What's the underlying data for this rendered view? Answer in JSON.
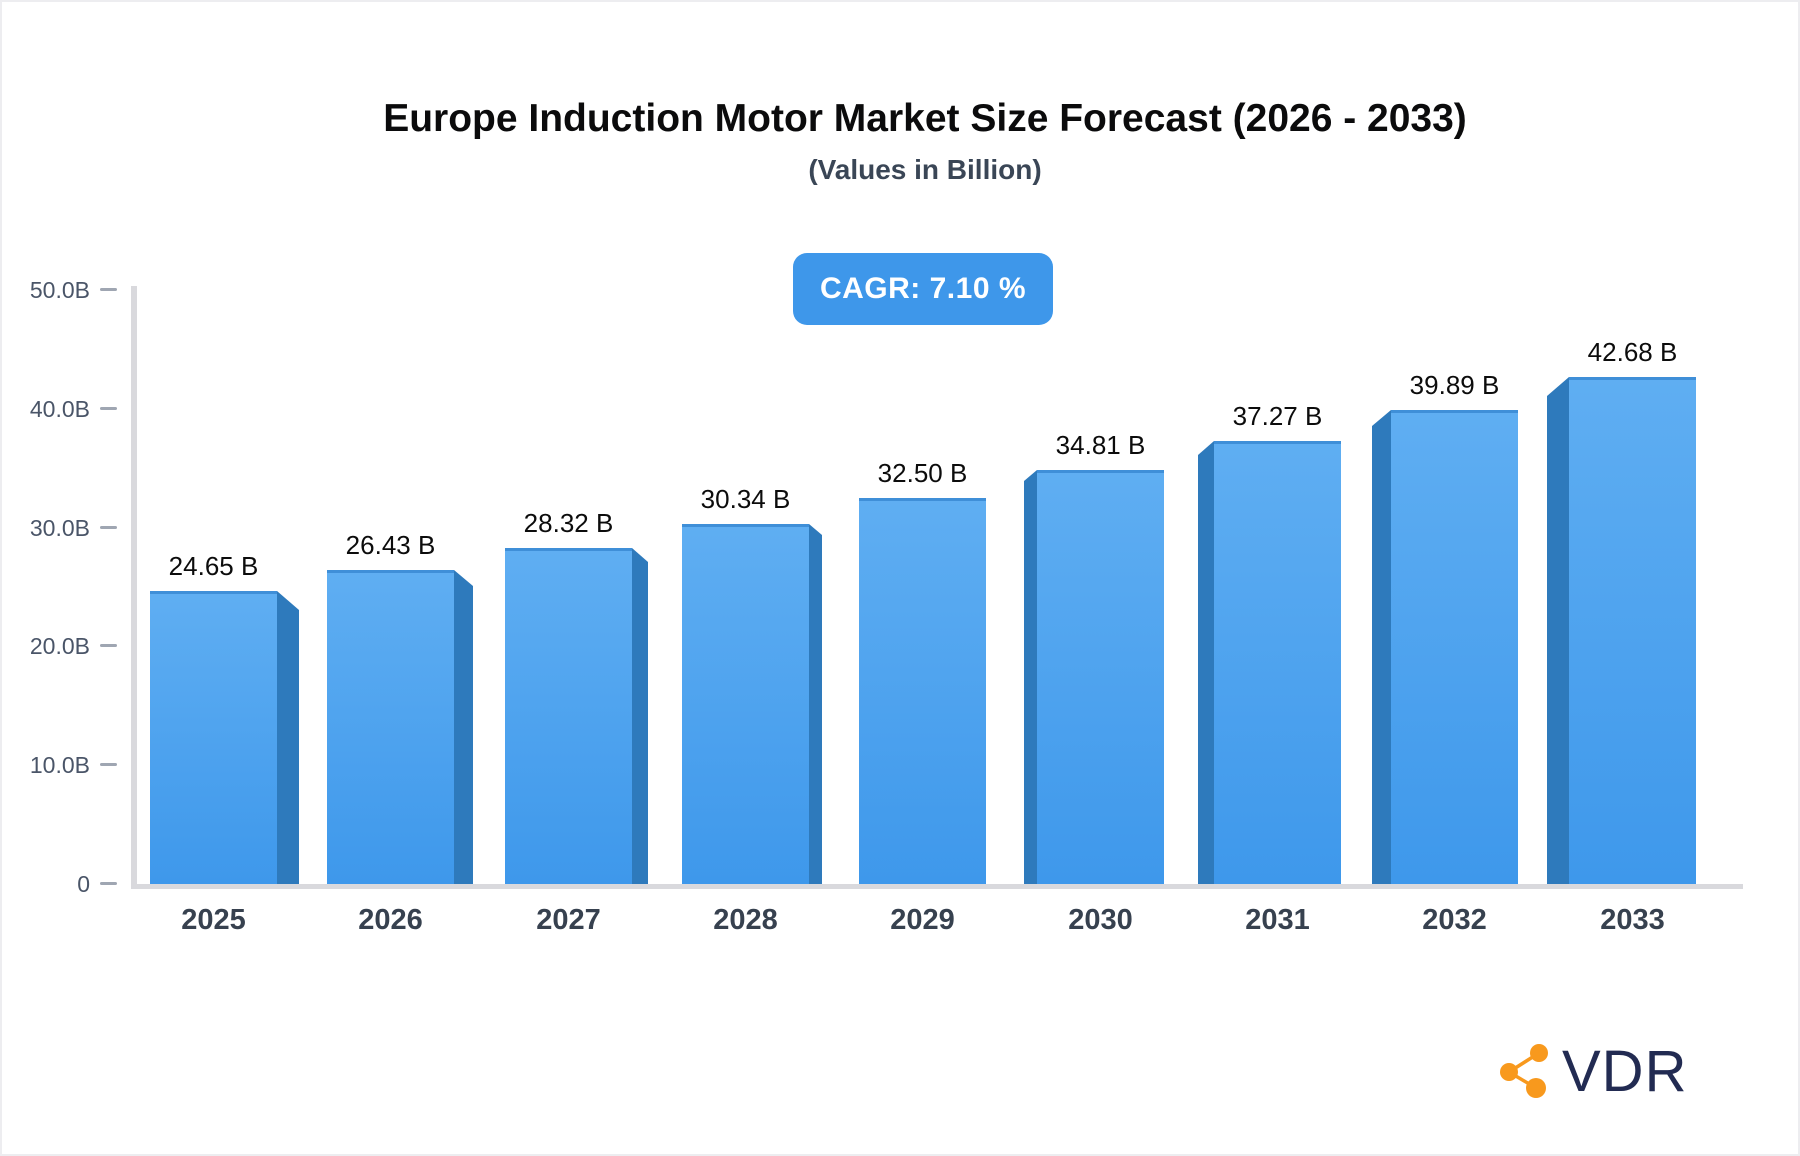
{
  "page": {
    "title": "Europe Induction Motor Market Size Forecast (2026 - 2033)",
    "subtitle": "(Values in Billion)",
    "cagr_badge": "CAGR: 7.10 %"
  },
  "chart_data": {
    "type": "bar",
    "title": "Europe Induction Motor Market Size Forecast (2026 - 2033)",
    "subtitle": "(Values in Billion)",
    "annotation": "CAGR: 7.10 %",
    "unit": "Billion",
    "categories": [
      "2025",
      "2026",
      "2027",
      "2028",
      "2029",
      "2030",
      "2031",
      "2032",
      "2033"
    ],
    "values": [
      24.65,
      26.43,
      28.32,
      30.34,
      32.5,
      34.81,
      37.27,
      39.89,
      42.68
    ],
    "value_labels": [
      "24.65 B",
      "26.43 B",
      "28.32 B",
      "30.34 B",
      "32.50 B",
      "34.81 B",
      "37.27 B",
      "39.89 B",
      "42.68 B"
    ],
    "xlabel": "",
    "ylabel": "",
    "ylim": [
      0,
      50
    ],
    "yticks": [
      {
        "v": 50,
        "label": "50.0B"
      },
      {
        "v": 40,
        "label": "40.0B"
      },
      {
        "v": 30,
        "label": "30.0B"
      },
      {
        "v": 20,
        "label": "20.0B"
      },
      {
        "v": 10,
        "label": "10.0B"
      },
      {
        "v": 0,
        "label": "0"
      }
    ],
    "grid": "off",
    "legend": "none",
    "bar_style": "3d-slab-perspective-from-center",
    "colors": {
      "bar_face_top": "#5FAEF2",
      "bar_face_bottom": "#3E98EB",
      "bar_top_edge": "#3F8FD8",
      "bar_side": "#2E7ABC",
      "badge_bg": "#3E97EA",
      "badge_text": "#FFFFFF",
      "axis_line": "#D9D9DD",
      "tick_dash": "#9FA6B2",
      "tick_text": "#4A5568",
      "category_text": "#37414F",
      "value_text": "#0C0C0C"
    }
  },
  "logo": {
    "text": "VDR",
    "icon": "share-network-icon",
    "icon_color": "#F8991D",
    "text_color": "#222B52"
  }
}
